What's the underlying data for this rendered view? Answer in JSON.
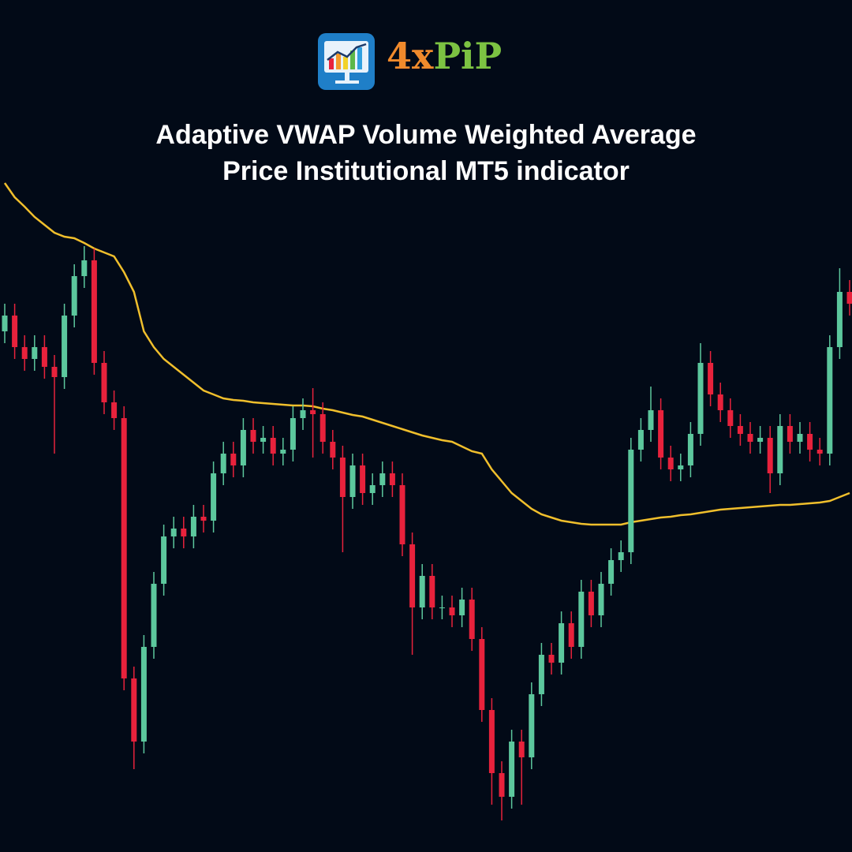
{
  "logo": {
    "prefix": "4x",
    "suffix": "PiP"
  },
  "chart_data": {
    "type": "candlestick",
    "title": "Adaptive VWAP Volume Weighted Average Price Institutional MT5 indicator",
    "ylim": [
      0,
      1080
    ],
    "up_color": "#5cc79d",
    "down_color": "#e8223c",
    "open": [
      660,
      680,
      640,
      625,
      640,
      615,
      602,
      680,
      730,
      750,
      620,
      570,
      550,
      220,
      140,
      260,
      340,
      400,
      410,
      400,
      425,
      420,
      480,
      505,
      490,
      535,
      520,
      525,
      505,
      510,
      550,
      560,
      555,
      520,
      500,
      450,
      490,
      455,
      465,
      480,
      465,
      390,
      310,
      350,
      310,
      310,
      300,
      320,
      270,
      180,
      100,
      70,
      140,
      120,
      200,
      250,
      240,
      290,
      260,
      330,
      300,
      340,
      370,
      380,
      510,
      535,
      560,
      500,
      485,
      490,
      530,
      620,
      580,
      560,
      540,
      530,
      520,
      525,
      480,
      540,
      520,
      530,
      510,
      505,
      640,
      710
    ],
    "high": [
      695,
      695,
      655,
      655,
      655,
      630,
      695,
      745,
      768,
      765,
      635,
      585,
      565,
      235,
      275,
      355,
      415,
      425,
      425,
      440,
      440,
      495,
      520,
      520,
      550,
      550,
      540,
      540,
      525,
      565,
      575,
      588,
      570,
      535,
      515,
      505,
      505,
      480,
      495,
      495,
      480,
      405,
      365,
      365,
      325,
      325,
      335,
      335,
      285,
      195,
      115,
      155,
      155,
      215,
      265,
      265,
      305,
      305,
      345,
      345,
      355,
      385,
      395,
      525,
      550,
      590,
      575,
      515,
      505,
      545,
      645,
      635,
      595,
      575,
      555,
      545,
      540,
      540,
      555,
      555,
      545,
      545,
      525,
      655,
      740,
      725
    ],
    "low": [
      645,
      625,
      610,
      610,
      600,
      505,
      587,
      665,
      715,
      605,
      555,
      535,
      205,
      105,
      125,
      245,
      325,
      385,
      385,
      385,
      405,
      405,
      465,
      475,
      475,
      505,
      505,
      490,
      490,
      495,
      535,
      500,
      505,
      485,
      380,
      435,
      440,
      440,
      450,
      450,
      375,
      250,
      295,
      295,
      295,
      285,
      285,
      255,
      165,
      60,
      40,
      55,
      60,
      105,
      185,
      225,
      225,
      245,
      245,
      285,
      285,
      325,
      355,
      365,
      495,
      520,
      485,
      470,
      470,
      475,
      515,
      565,
      545,
      525,
      515,
      505,
      505,
      455,
      465,
      505,
      505,
      495,
      490,
      490,
      625,
      680
    ],
    "close": [
      680,
      640,
      625,
      640,
      615,
      602,
      680,
      730,
      750,
      620,
      570,
      550,
      220,
      140,
      260,
      340,
      400,
      410,
      400,
      425,
      420,
      480,
      505,
      490,
      535,
      520,
      525,
      505,
      510,
      550,
      560,
      555,
      520,
      500,
      450,
      490,
      455,
      465,
      480,
      465,
      390,
      310,
      350,
      310,
      310,
      300,
      320,
      270,
      180,
      100,
      70,
      140,
      120,
      200,
      250,
      240,
      290,
      260,
      330,
      300,
      340,
      370,
      380,
      510,
      535,
      560,
      500,
      485,
      490,
      530,
      620,
      580,
      560,
      540,
      530,
      520,
      525,
      480,
      540,
      520,
      530,
      510,
      505,
      640,
      710,
      695
    ],
    "lines": [
      {
        "color": "#f0bf2c",
        "values": [
          848,
          830,
          818,
          805,
          795,
          785,
          780,
          778,
          772,
          765,
          760,
          755,
          735,
          710,
          660,
          640,
          625,
          615,
          605,
          595,
          585,
          580,
          575,
          573,
          572,
          570,
          569,
          568,
          567,
          566,
          566,
          565,
          562,
          560,
          557,
          554,
          552,
          548,
          544,
          540,
          536,
          532,
          528,
          525,
          522,
          520,
          514,
          508,
          505,
          485,
          470,
          455,
          445,
          435,
          428,
          424,
          420,
          418,
          416,
          415,
          415,
          415,
          415,
          418,
          420,
          422,
          424,
          425,
          427,
          428,
          430,
          432,
          434,
          435,
          436,
          437,
          438,
          439,
          440,
          440,
          441,
          442,
          443,
          445,
          450,
          455
        ]
      }
    ]
  }
}
